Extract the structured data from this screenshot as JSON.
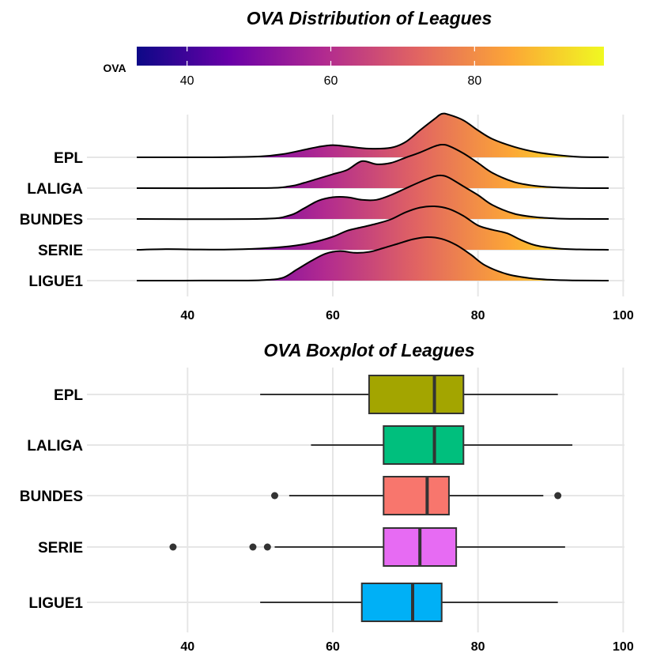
{
  "chart_data": [
    {
      "type": "ridgeline",
      "title": "OVA Distribution of Leagues",
      "xlabel": "",
      "ylabel": "",
      "xlim": [
        33,
        98
      ],
      "x_ticks": [
        40,
        60,
        80,
        100
      ],
      "grid": true,
      "colorbar": {
        "title": "OVA",
        "range": [
          33,
          98
        ],
        "ticks": [
          40,
          60,
          80
        ],
        "colors": [
          "#0d0887",
          "#6a00a8",
          "#b12a90",
          "#e16462",
          "#fca636",
          "#f0f921"
        ],
        "placement": "top"
      },
      "categories": [
        "EPL",
        "LALIGA",
        "BUNDES",
        "SERIE",
        "LIGUE1"
      ],
      "series": [
        {
          "name": "EPL",
          "x": [
            33,
            40,
            45,
            50,
            53,
            56,
            58,
            60,
            62,
            65,
            68,
            70,
            72,
            74,
            75,
            76,
            78,
            80,
            82,
            85,
            88,
            91,
            94,
            98
          ],
          "density": [
            0,
            0,
            0.003,
            0.02,
            0.07,
            0.17,
            0.24,
            0.28,
            0.25,
            0.2,
            0.22,
            0.35,
            0.62,
            0.88,
            1.0,
            0.98,
            0.85,
            0.62,
            0.42,
            0.24,
            0.12,
            0.05,
            0.01,
            0
          ]
        },
        {
          "name": "LALIGA",
          "x": [
            33,
            50,
            54,
            56,
            58,
            60,
            62,
            64,
            66,
            68,
            70,
            72,
            74,
            75,
            76,
            78,
            80,
            82,
            85,
            88,
            91,
            94,
            98
          ],
          "density": [
            0,
            0.002,
            0.04,
            0.12,
            0.22,
            0.32,
            0.42,
            0.62,
            0.55,
            0.58,
            0.7,
            0.82,
            0.96,
            1.0,
            0.97,
            0.8,
            0.58,
            0.35,
            0.14,
            0.05,
            0.015,
            0.003,
            0
          ]
        },
        {
          "name": "BUNDES",
          "x": [
            33,
            50,
            54,
            56,
            58,
            60,
            62,
            64,
            66,
            68,
            70,
            72,
            74,
            75,
            76,
            78,
            80,
            82,
            85,
            88,
            91,
            94,
            98
          ],
          "density": [
            0,
            0.002,
            0.08,
            0.24,
            0.42,
            0.5,
            0.5,
            0.44,
            0.44,
            0.55,
            0.7,
            0.85,
            0.98,
            1.0,
            0.95,
            0.75,
            0.55,
            0.32,
            0.12,
            0.04,
            0.01,
            0.002,
            0
          ]
        },
        {
          "name": "SERIE",
          "x": [
            33,
            37,
            40,
            45,
            50,
            54,
            57,
            60,
            62,
            64,
            66,
            68,
            70,
            72,
            74,
            76,
            78,
            80,
            82,
            84,
            86,
            88,
            91,
            94,
            98
          ],
          "density": [
            0,
            0.015,
            0.01,
            0.005,
            0.03,
            0.08,
            0.16,
            0.3,
            0.44,
            0.52,
            0.6,
            0.7,
            0.86,
            0.97,
            1.0,
            0.94,
            0.78,
            0.56,
            0.46,
            0.38,
            0.22,
            0.1,
            0.03,
            0.008,
            0
          ]
        },
        {
          "name": "LIGUE1",
          "x": [
            33,
            45,
            50,
            53,
            55,
            57,
            59,
            61,
            63,
            65,
            67,
            69,
            71,
            73,
            75,
            77,
            79,
            81,
            84,
            87,
            90,
            93,
            98
          ],
          "density": [
            0,
            0.002,
            0.01,
            0.06,
            0.25,
            0.45,
            0.62,
            0.68,
            0.64,
            0.66,
            0.75,
            0.85,
            0.95,
            1.0,
            0.96,
            0.82,
            0.6,
            0.35,
            0.15,
            0.06,
            0.02,
            0.005,
            0
          ]
        }
      ]
    },
    {
      "type": "boxplot",
      "title": "OVA Boxplot of Leagues",
      "xlabel": "",
      "ylabel": "",
      "xlim": [
        33,
        98
      ],
      "x_ticks": [
        40,
        60,
        80,
        100
      ],
      "grid": true,
      "categories": [
        "EPL",
        "LALIGA",
        "BUNDES",
        "SERIE",
        "LIGUE1"
      ],
      "series": [
        {
          "name": "EPL",
          "color": "#a3a500",
          "whisker_low": 50,
          "q1": 65,
          "median": 74,
          "q3": 78,
          "whisker_high": 91,
          "outliers": []
        },
        {
          "name": "LALIGA",
          "color": "#00bf7d",
          "whisker_low": 57,
          "q1": 67,
          "median": 74,
          "q3": 78,
          "whisker_high": 93,
          "outliers": []
        },
        {
          "name": "BUNDES",
          "color": "#f8766d",
          "whisker_low": 54,
          "q1": 67,
          "median": 73,
          "q3": 76,
          "whisker_high": 89,
          "outliers": [
            52,
            91
          ]
        },
        {
          "name": "SERIE",
          "color": "#e76bf3",
          "whisker_low": 52,
          "q1": 67,
          "median": 72,
          "q3": 77,
          "whisker_high": 92,
          "outliers": [
            38,
            49,
            51
          ]
        },
        {
          "name": "LIGUE1",
          "color": "#00b0f6",
          "whisker_low": 50,
          "q1": 64,
          "median": 71,
          "q3": 75,
          "whisker_high": 91,
          "outliers": []
        }
      ]
    }
  ]
}
